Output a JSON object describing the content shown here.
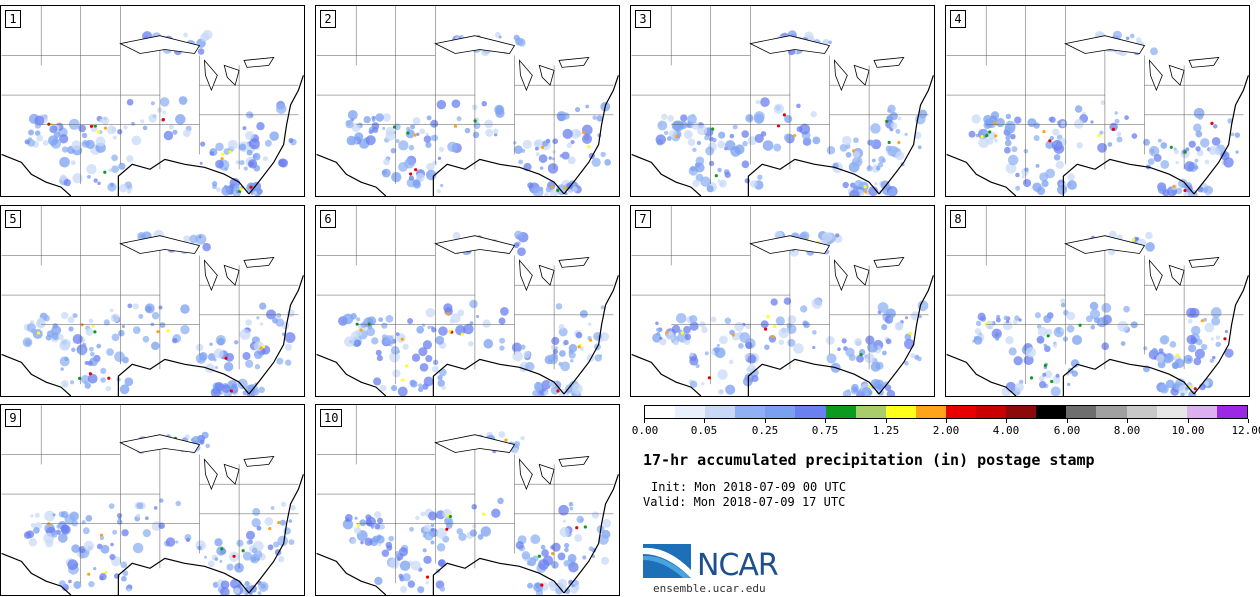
{
  "panels": [
    {
      "label": "1"
    },
    {
      "label": "2"
    },
    {
      "label": "3"
    },
    {
      "label": "4"
    },
    {
      "label": "5"
    },
    {
      "label": "6"
    },
    {
      "label": "7"
    },
    {
      "label": "8"
    },
    {
      "label": "9"
    },
    {
      "label": "10"
    }
  ],
  "colorbar": {
    "colors": [
      "#ffffff",
      "#e8f0fb",
      "#c8d9f7",
      "#8fb1f3",
      "#7aa0f0",
      "#6a7ff0",
      "#0c9b1e",
      "#a8cd6a",
      "#ffff1a",
      "#ffa31a",
      "#e80000",
      "#c80000",
      "#8c0a0a",
      "#000000",
      "#6e6e6e",
      "#a0a0a0",
      "#c8c8c8",
      "#e6e6e6",
      "#dcb0f0",
      "#9b28e6"
    ],
    "tick_labels": [
      "0.00",
      "0.05",
      "0.25",
      "0.75",
      "1.25",
      "2.00",
      "4.00",
      "6.00",
      "8.00",
      "10.00",
      "12.00"
    ]
  },
  "title": "17-hr accumulated precipitation (in) postage stamp",
  "init": "Init: Mon 2018-07-09 00 UTC",
  "valid": "Valid: Mon 2018-07-09 17 UTC",
  "logo": {
    "text": "NCAR",
    "url": "ensemble.ucar.edu",
    "color": "#1d4f8c"
  }
}
